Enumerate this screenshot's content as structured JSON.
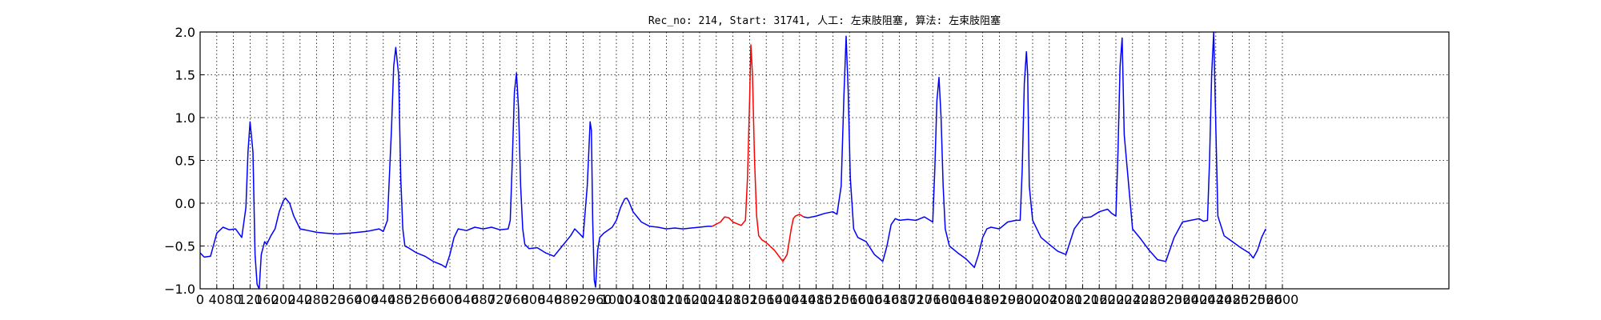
{
  "chart_data": {
    "type": "line",
    "title": "Rec_no: 214, Start: 31741, 人工: 左束肢阻塞, 算法: 左束肢阻塞",
    "xlabel": "",
    "ylabel": "",
    "xlim": [
      0,
      3000
    ],
    "ylim": [
      -1.0,
      2.0
    ],
    "y_ticks": [
      -1.0,
      -0.5,
      0.0,
      0.5,
      1.0,
      1.5,
      2.0
    ],
    "y_tick_labels": [
      "−1.0",
      "−0.5",
      "0.0",
      "0.5",
      "1.0",
      "1.5",
      "2.0"
    ],
    "x_ticks": [
      0,
      40,
      80,
      120,
      160,
      200,
      240,
      280,
      320,
      360,
      400,
      440,
      480,
      520,
      560,
      600,
      640,
      680,
      720,
      760,
      800,
      840,
      880,
      920,
      960,
      1000,
      1040,
      1080,
      1120,
      1160,
      1200,
      1240,
      1280,
      1320,
      1360,
      1400,
      1440,
      1480,
      1520,
      1560,
      1600,
      1640,
      1680,
      1720,
      1760,
      1800,
      1840,
      1880,
      1920,
      1960,
      2000,
      2040,
      2080,
      2120,
      2160,
      2200,
      2240,
      2280,
      2320,
      2360,
      2400,
      2440,
      2480,
      2520,
      2560,
      2600
    ],
    "x_tick_labels": [
      "0",
      "40",
      "80",
      "120",
      "160",
      "200",
      "240",
      "280",
      "320",
      "360",
      "400",
      "440",
      "480",
      "520",
      "560",
      "600",
      "640",
      "680",
      "720",
      "760",
      "800",
      "840",
      "880",
      "920",
      "960",
      "1000",
      "1040",
      "1080",
      "1120",
      "1160",
      "1200",
      "1240",
      "1280",
      "1320",
      "1360",
      "1400",
      "1440",
      "1480",
      "1520",
      "1560",
      "1600",
      "1640",
      "1680",
      "1720",
      "1760",
      "1800",
      "1840",
      "1880",
      "1920",
      "1960",
      "2000",
      "2040",
      "2080",
      "2120",
      "2160",
      "2200",
      "2240",
      "2280",
      "2320",
      "2360",
      "2400",
      "2440",
      "2480",
      "2520",
      "2560",
      "2600"
    ],
    "grid": true,
    "colors": {
      "signal": "#0000ff",
      "highlight": "#ff0000",
      "grid": "#000000",
      "axes": "#000000"
    },
    "series": [
      {
        "color": "#0000ff",
        "x": [
          0,
          10,
          25,
          40,
          55,
          70,
          85,
          100,
          110,
          115,
          120,
          127,
          132,
          137,
          142,
          147,
          155,
          160,
          170,
          180,
          190,
          200,
          205,
          215,
          225,
          240,
          260,
          280,
          300,
          330,
          360,
          400,
          430,
          440,
          450,
          460,
          465,
          470,
          477,
          482,
          487,
          492,
          500,
          520,
          540,
          560,
          580,
          590,
          600,
          610,
          620,
          640,
          660,
          680,
          700,
          720,
          740,
          745,
          750,
          755,
          760,
          765,
          770,
          775,
          780,
          790,
          810,
          830,
          850,
          870,
          890,
          900,
          910,
          920,
          930,
          937,
          940,
          943,
          947,
          950,
          955,
          960,
          970,
          990,
          1000,
          1010,
          1020,
          1025,
          1030,
          1040,
          1060,
          1080,
          1100,
          1120,
          1140,
          1160,
          1180,
          1200,
          1220,
          1230
        ],
        "y": [
          -0.58,
          -0.63,
          -0.62,
          -0.35,
          -0.28,
          -0.31,
          -0.3,
          -0.4,
          -0.05,
          0.6,
          0.95,
          0.6,
          -0.6,
          -0.95,
          -1.0,
          -0.6,
          -0.45,
          -0.48,
          -0.38,
          -0.3,
          -0.1,
          0.03,
          0.06,
          0.0,
          -0.15,
          -0.3,
          -0.32,
          -0.34,
          -0.35,
          -0.36,
          -0.35,
          -0.33,
          -0.3,
          -0.33,
          -0.2,
          0.9,
          1.6,
          1.82,
          1.5,
          0.3,
          -0.3,
          -0.5,
          -0.52,
          -0.58,
          -0.62,
          -0.68,
          -0.72,
          -0.75,
          -0.6,
          -0.4,
          -0.3,
          -0.32,
          -0.28,
          -0.3,
          -0.28,
          -0.31,
          -0.3,
          -0.2,
          0.5,
          1.3,
          1.52,
          1.1,
          0.2,
          -0.3,
          -0.48,
          -0.53,
          -0.52,
          -0.58,
          -0.62,
          -0.5,
          -0.38,
          -0.3,
          -0.35,
          -0.4,
          0.2,
          0.95,
          0.85,
          -0.2,
          -0.9,
          -0.98,
          -0.55,
          -0.4,
          -0.35,
          -0.28,
          -0.2,
          -0.05,
          0.05,
          0.06,
          0.02,
          -0.1,
          -0.22,
          -0.27,
          -0.28,
          -0.3,
          -0.29,
          -0.3,
          -0.29,
          -0.28,
          -0.27,
          -0.27
        ]
      },
      {
        "color": "#ff0000",
        "x": [
          1230,
          1250,
          1260,
          1270,
          1280,
          1290,
          1300,
          1310,
          1315,
          1320,
          1323,
          1327,
          1332,
          1337,
          1342,
          1350,
          1360,
          1380,
          1400,
          1410,
          1420,
          1425,
          1430,
          1440,
          1450
        ],
        "y": [
          -0.27,
          -0.22,
          -0.16,
          -0.17,
          -0.22,
          -0.24,
          -0.26,
          -0.2,
          0.3,
          1.2,
          1.85,
          1.5,
          0.5,
          -0.15,
          -0.38,
          -0.43,
          -0.46,
          -0.55,
          -0.68,
          -0.6,
          -0.3,
          -0.18,
          -0.15,
          -0.13,
          -0.16
        ]
      },
      {
        "color": "#0000ff",
        "x": [
          1450,
          1460,
          1480,
          1500,
          1520,
          1530,
          1540,
          1547,
          1552,
          1557,
          1562,
          1570,
          1580,
          1600,
          1620,
          1640,
          1650,
          1660,
          1670,
          1680,
          1700,
          1720,
          1740,
          1760,
          1765,
          1770,
          1775,
          1780,
          1785,
          1790,
          1800,
          1820,
          1840,
          1860,
          1870,
          1880,
          1890,
          1900,
          1920,
          1940,
          1960,
          1970,
          1975,
          1980,
          1985,
          1988,
          1992,
          2000,
          2020,
          2040,
          2060,
          2080,
          2100,
          2120,
          2140,
          2160,
          2180,
          2190,
          2200,
          2205,
          2210,
          2215,
          2220,
          2240,
          2260,
          2280,
          2300,
          2320,
          2340,
          2360,
          2380,
          2400,
          2410,
          2420,
          2425,
          2430,
          2435,
          2440,
          2445,
          2460,
          2480,
          2500,
          2520,
          2530,
          2540,
          2550,
          2560
        ],
        "y": [
          -0.16,
          -0.17,
          -0.15,
          -0.12,
          -0.1,
          -0.13,
          0.2,
          1.3,
          1.95,
          1.3,
          0.3,
          -0.3,
          -0.4,
          -0.45,
          -0.6,
          -0.68,
          -0.5,
          -0.25,
          -0.18,
          -0.2,
          -0.19,
          -0.2,
          -0.16,
          -0.22,
          0.4,
          1.2,
          1.47,
          1.0,
          0.2,
          -0.3,
          -0.5,
          -0.58,
          -0.65,
          -0.75,
          -0.6,
          -0.4,
          -0.3,
          -0.28,
          -0.3,
          -0.22,
          -0.2,
          -0.2,
          0.4,
          1.4,
          1.77,
          1.5,
          0.2,
          -0.2,
          -0.4,
          -0.48,
          -0.56,
          -0.6,
          -0.3,
          -0.17,
          -0.16,
          -0.1,
          -0.07,
          -0.12,
          -0.15,
          0.6,
          1.6,
          1.93,
          0.8,
          -0.3,
          -0.42,
          -0.55,
          -0.66,
          -0.68,
          -0.4,
          -0.22,
          -0.2,
          -0.18,
          -0.21,
          -0.2,
          0.5,
          1.5,
          2.0,
          0.9,
          -0.15,
          -0.38,
          -0.45,
          -0.52,
          -0.58,
          -0.64,
          -0.55,
          -0.4,
          -0.3
        ]
      }
    ]
  }
}
